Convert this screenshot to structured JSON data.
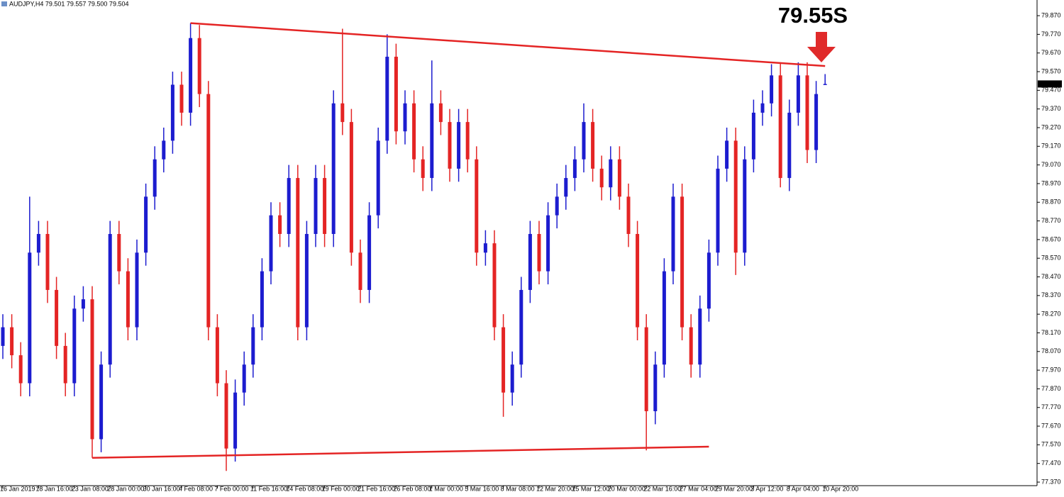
{
  "chart_data": {
    "type": "candlestick",
    "header": "AUDJPY,H4  79.501 79.557 79.500 79.504",
    "annotation": {
      "text": "79.55S",
      "color": "#e02a2a"
    },
    "up_color": "#1c1ccf",
    "down_color": "#e42424",
    "categories": [
      "16 Jan 2019",
      null,
      null,
      null,
      "18 Jan 16:00",
      null,
      null,
      null,
      "23 Jan 08:00",
      null,
      null,
      null,
      "28 Jan 00:00",
      null,
      null,
      null,
      "30 Jan 16:00",
      null,
      null,
      null,
      "4 Feb 08:00",
      null,
      null,
      null,
      "7 Feb 00:00",
      null,
      null,
      null,
      "11 Feb 16:00",
      null,
      null,
      null,
      "14 Feb 08:00",
      null,
      null,
      null,
      "19 Feb 00:00",
      null,
      null,
      null,
      "21 Feb 16:00",
      null,
      null,
      null,
      "26 Feb 08:00",
      null,
      null,
      null,
      "1 Mar 00:00",
      null,
      null,
      null,
      "5 Mar 16:00",
      null,
      null,
      null,
      "8 Mar 08:00",
      null,
      null,
      null,
      "12 Mar 20:00",
      null,
      null,
      null,
      "15 Mar 12:00",
      null,
      null,
      null,
      "20 Mar 00:00",
      null,
      null,
      null,
      "22 Mar 16:00",
      null,
      null,
      null,
      "27 Mar 04:00",
      null,
      null,
      null,
      "29 Mar 20:00",
      null,
      null,
      null,
      "3 Apr 12:00",
      null,
      null,
      null,
      "8 Apr 04:00",
      null,
      null,
      null,
      "10 Apr 20:00"
    ],
    "open": [
      78.1,
      78.2,
      78.05,
      77.9,
      78.6,
      78.7,
      78.4,
      78.1,
      77.9,
      78.3,
      78.35,
      77.6,
      78.0,
      78.7,
      78.5,
      78.2,
      78.6,
      78.9,
      79.1,
      79.2,
      79.5,
      79.35,
      79.75,
      79.45,
      78.2,
      77.9,
      77.55,
      77.85,
      78.0,
      78.2,
      78.5,
      78.8,
      78.7,
      79.0,
      78.2,
      78.7,
      79.0,
      78.7,
      79.4,
      79.3,
      78.6,
      78.4,
      78.8,
      79.2,
      79.65,
      79.25,
      79.4,
      79.1,
      79.0,
      79.4,
      79.3,
      79.05,
      79.3,
      79.1,
      78.6,
      78.65,
      78.2,
      77.85,
      78.0,
      78.4,
      78.7,
      78.5,
      78.8,
      78.9,
      79.0,
      79.1,
      79.3,
      79.05,
      78.95,
      79.1,
      78.9,
      78.7,
      78.2,
      77.75,
      78.0,
      78.5,
      78.9,
      78.2,
      78.0,
      78.3,
      78.6,
      79.05,
      79.2,
      78.6,
      79.1,
      79.35,
      79.4,
      79.55,
      79.0,
      79.35,
      79.55,
      79.15,
      79.501
    ],
    "high": [
      78.27,
      78.27,
      78.12,
      78.9,
      78.77,
      78.77,
      78.47,
      78.17,
      78.37,
      78.42,
      78.42,
      78.07,
      78.77,
      78.77,
      78.57,
      78.67,
      78.97,
      79.17,
      79.27,
      79.57,
      79.57,
      79.83,
      79.82,
      79.52,
      78.27,
      77.97,
      77.92,
      78.07,
      78.27,
      78.57,
      78.87,
      78.87,
      79.07,
      79.07,
      78.77,
      79.07,
      79.07,
      79.47,
      79.8,
      79.37,
      78.67,
      78.87,
      79.27,
      79.77,
      79.72,
      79.47,
      79.47,
      79.17,
      79.63,
      79.47,
      79.37,
      79.37,
      79.37,
      79.17,
      78.72,
      78.72,
      78.27,
      78.07,
      78.47,
      78.77,
      78.77,
      78.87,
      78.97,
      79.07,
      79.17,
      79.4,
      79.37,
      79.12,
      79.17,
      79.17,
      78.97,
      78.77,
      78.27,
      78.07,
      78.57,
      78.97,
      78.97,
      78.27,
      78.37,
      78.67,
      79.12,
      79.27,
      79.27,
      79.17,
      79.42,
      79.47,
      79.61,
      79.62,
      79.42,
      79.62,
      79.62,
      79.52,
      79.557
    ],
    "low": [
      78.03,
      77.98,
      77.83,
      77.83,
      78.53,
      78.33,
      78.03,
      77.83,
      77.83,
      78.23,
      77.5,
      77.53,
      77.93,
      78.43,
      78.13,
      78.13,
      78.53,
      78.83,
      79.03,
      79.13,
      79.28,
      79.28,
      79.38,
      78.13,
      77.83,
      77.43,
      77.48,
      77.78,
      77.93,
      78.13,
      78.43,
      78.63,
      78.63,
      78.13,
      78.13,
      78.63,
      78.63,
      78.63,
      79.23,
      78.53,
      78.33,
      78.33,
      78.73,
      79.13,
      79.18,
      79.18,
      79.03,
      78.93,
      78.93,
      79.23,
      78.98,
      78.98,
      79.03,
      78.53,
      78.53,
      78.13,
      77.72,
      77.78,
      77.93,
      78.33,
      78.43,
      78.43,
      78.73,
      78.83,
      78.93,
      79.03,
      78.98,
      78.88,
      78.88,
      78.83,
      78.63,
      78.13,
      77.54,
      77.68,
      77.93,
      78.43,
      78.13,
      77.93,
      77.93,
      78.23,
      78.53,
      78.98,
      78.48,
      78.53,
      79.03,
      79.28,
      79.33,
      78.95,
      78.93,
      79.28,
      79.08,
      79.08,
      79.5
    ],
    "close": [
      78.2,
      78.05,
      77.9,
      78.6,
      78.7,
      78.4,
      78.1,
      77.9,
      78.3,
      78.35,
      77.6,
      78.0,
      78.7,
      78.5,
      78.2,
      78.6,
      78.9,
      79.1,
      79.2,
      79.5,
      79.35,
      79.75,
      79.45,
      78.2,
      77.9,
      77.55,
      77.85,
      78.0,
      78.2,
      78.5,
      78.8,
      78.7,
      79.0,
      78.2,
      78.7,
      79.0,
      78.7,
      79.4,
      79.3,
      78.6,
      78.4,
      78.8,
      79.2,
      79.65,
      79.25,
      79.4,
      79.1,
      79.0,
      79.4,
      79.3,
      79.05,
      79.3,
      79.1,
      78.6,
      78.65,
      78.2,
      77.85,
      78.0,
      78.4,
      78.7,
      78.5,
      78.8,
      78.9,
      79.0,
      79.1,
      79.3,
      79.05,
      78.95,
      79.1,
      78.9,
      78.7,
      78.2,
      77.75,
      78.0,
      78.5,
      78.9,
      78.2,
      78.0,
      78.3,
      78.6,
      79.05,
      79.2,
      78.6,
      79.1,
      79.35,
      79.4,
      79.55,
      79.0,
      79.35,
      79.55,
      79.15,
      79.45,
      79.504
    ],
    "trendlines": [
      {
        "from": 21,
        "to": 92,
        "start": 79.83,
        "end": 79.6,
        "color": "#e42424"
      },
      {
        "from": 10,
        "to": 79,
        "start": 77.5,
        "end": 77.56,
        "color": "#e42424"
      }
    ],
    "ylim": [
      77.351,
      79.954
    ],
    "yticks": [
      {
        "value": 79.87,
        "label": "79.870"
      },
      {
        "value": 79.77,
        "label": "79.770"
      },
      {
        "value": 79.67,
        "label": "79.670"
      },
      {
        "value": 79.57,
        "label": "79.570"
      },
      {
        "value": 79.47,
        "label": "79.470"
      },
      {
        "value": 79.37,
        "label": "79.370"
      },
      {
        "value": 79.27,
        "label": "79.270"
      },
      {
        "value": 79.17,
        "label": "79.170"
      },
      {
        "value": 79.07,
        "label": "79.070"
      },
      {
        "value": 78.97,
        "label": "78.970"
      },
      {
        "value": 78.87,
        "label": "78.870"
      },
      {
        "value": 78.77,
        "label": "78.770"
      },
      {
        "value": 78.67,
        "label": "78.670"
      },
      {
        "value": 78.57,
        "label": "78.570"
      },
      {
        "value": 78.47,
        "label": "78.470"
      },
      {
        "value": 78.37,
        "label": "78.370"
      },
      {
        "value": 78.27,
        "label": "78.270"
      },
      {
        "value": 78.17,
        "label": "78.170"
      },
      {
        "value": 78.07,
        "label": "78.070"
      },
      {
        "value": 77.97,
        "label": "77.970"
      },
      {
        "value": 77.87,
        "label": "77.870"
      },
      {
        "value": 77.77,
        "label": "77.770"
      },
      {
        "value": 77.67,
        "label": "77.670"
      },
      {
        "value": 77.57,
        "label": "77.570"
      },
      {
        "value": 77.47,
        "label": "77.470"
      },
      {
        "value": 77.37,
        "label": "77.370"
      }
    ],
    "grid": false
  }
}
